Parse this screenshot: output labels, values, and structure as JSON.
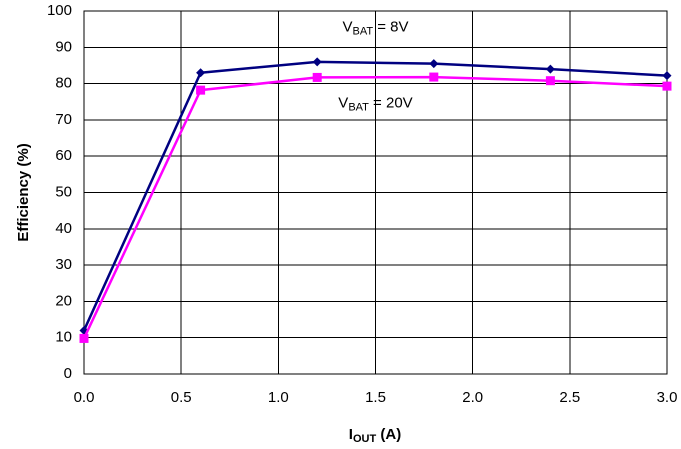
{
  "chart_data": {
    "type": "line",
    "title": "",
    "xlabel": {
      "main": "I",
      "sub": "OUT",
      "tail": " (A)"
    },
    "ylabel": "Efficiency (%)",
    "xlim": [
      0.0,
      3.0
    ],
    "ylim": [
      0,
      100
    ],
    "xticks": [
      "0.0",
      "0.5",
      "1.0",
      "1.5",
      "2.0",
      "2.5",
      "3.0"
    ],
    "yticks": [
      "0",
      "10",
      "20",
      "30",
      "40",
      "50",
      "60",
      "70",
      "80",
      "90",
      "100"
    ],
    "grid": true,
    "series": [
      {
        "color": "#000080",
        "marker": "diamond",
        "x": [
          0.0,
          0.6,
          1.2,
          1.8,
          2.4,
          3.0
        ],
        "y": [
          12,
          83,
          86,
          85.5,
          84,
          82.2
        ]
      },
      {
        "color": "#ff00ff",
        "marker": "square",
        "x": [
          0.0,
          0.6,
          1.2,
          1.8,
          2.4,
          3.0
        ],
        "y": [
          9.8,
          78.2,
          81.7,
          81.8,
          80.8,
          79.3
        ]
      }
    ],
    "annotations": [
      {
        "main": "V",
        "sub": "BAT",
        "tail": " = 8V",
        "x": 1.5,
        "y": 95.5
      },
      {
        "main": "V",
        "sub": "BAT",
        "tail": " = 20V",
        "x": 1.5,
        "y": 74.5
      }
    ]
  }
}
